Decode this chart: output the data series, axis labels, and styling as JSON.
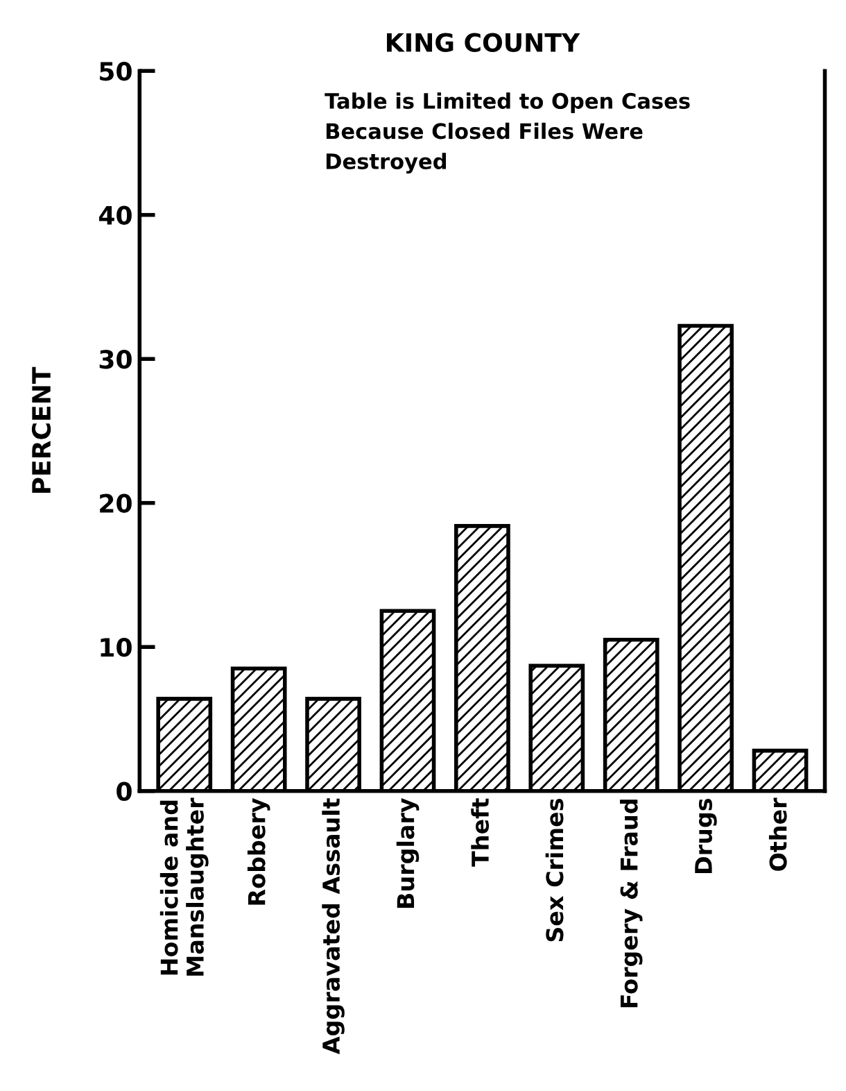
{
  "chart_data": {
    "type": "bar",
    "title": "KING COUNTY",
    "ylabel": "PERCENT",
    "categories": [
      "Homicide and\nManslaughter",
      "Robbery",
      "Aggravated Assault",
      "Burglary",
      "Theft",
      "Sex Crimes",
      "Forgery & Fraud",
      "Drugs",
      "Other"
    ],
    "values": [
      6.4,
      8.5,
      6.4,
      12.5,
      18.4,
      8.7,
      10.5,
      32.3,
      2.8
    ],
    "color": "#000000",
    "ylim": [
      0,
      50
    ],
    "yticks": [
      0,
      10,
      20,
      30,
      40,
      50
    ],
    "grid": false,
    "legend": false,
    "annotations": [
      "Table is Limited to Open Cases\nBecause Closed Files Were\nDestroyed"
    ]
  }
}
